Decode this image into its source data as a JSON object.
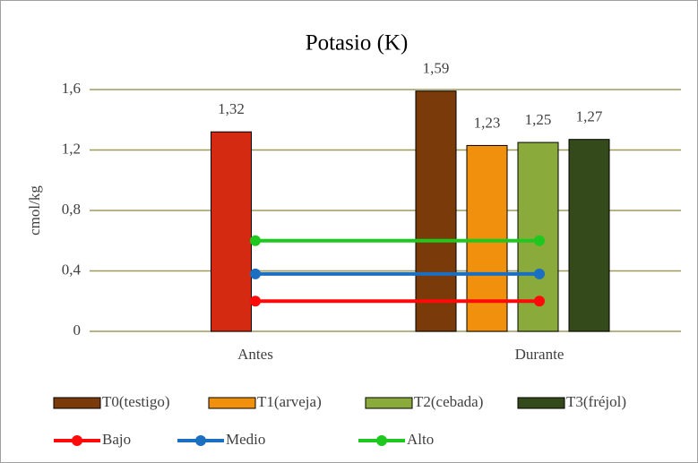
{
  "chart_data": {
    "type": "bar",
    "title": "Potasio (K)",
    "y_label": "cmol/kg",
    "categories": [
      "Antes",
      "Durante"
    ],
    "ylim": [
      0,
      1.6
    ],
    "yticks": [
      0,
      {
        "value": 0.4,
        "label": "0,4"
      },
      {
        "value": 0.8,
        "label": "0,8"
      },
      {
        "value": 1.2,
        "label": "1,2"
      },
      {
        "value": 1.6,
        "label": "1,6"
      }
    ],
    "grid": true,
    "grid_color": "#a09a5e",
    "legend": "bottom",
    "series": [
      {
        "color": "#d42a12",
        "values": [
          1.32,
          null
        ],
        "value_labels": [
          "1,32",
          null
        ]
      },
      {
        "name": "T0(testigo)",
        "color": "#7a3a0a",
        "values": [
          null,
          1.59
        ],
        "value_labels": [
          null,
          "1,59"
        ]
      },
      {
        "name": "T1(arveja)",
        "color": "#f0900c",
        "values": [
          null,
          1.23
        ],
        "value_labels": [
          null,
          "1,23"
        ]
      },
      {
        "name": "T2(cebada)",
        "color": "#8aaa3c",
        "values": [
          null,
          1.25
        ],
        "value_labels": [
          null,
          "1,25"
        ]
      },
      {
        "name": "T3(fréjol)",
        "color": "#344a1a",
        "values": [
          null,
          1.27
        ],
        "value_labels": [
          null,
          "1,27"
        ]
      }
    ],
    "lines": [
      {
        "name": "Bajo",
        "color": "#ff0a0a",
        "values": [
          0.2,
          0.2
        ]
      },
      {
        "name": "Medio",
        "color": "#1a6fc0",
        "values": [
          0.38,
          0.38
        ]
      },
      {
        "name": "Alto",
        "color": "#1ec81e",
        "values": [
          0.6,
          0.6
        ]
      }
    ]
  }
}
